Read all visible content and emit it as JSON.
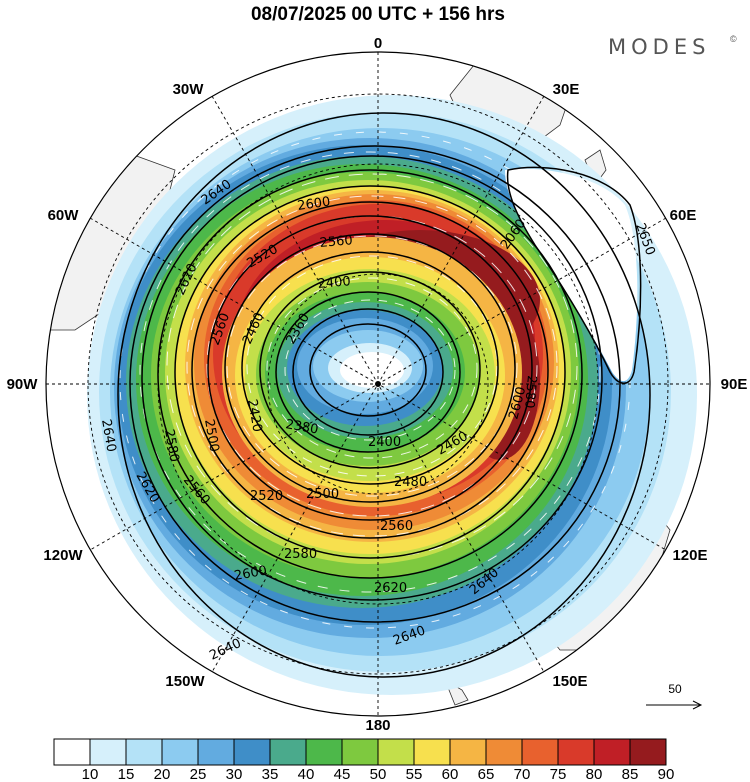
{
  "title": "08/07/2025  00 UTC  + 156 hrs",
  "brand": "MODES",
  "brand_mark": "©",
  "longitude_labels": {
    "lon_0": "0",
    "lon_30e": "30E",
    "lon_60e": "60E",
    "lon_90e": "90E",
    "lon_120e": "120E",
    "lon_150e": "150E",
    "lon_180": "180",
    "lon_150w": "150W",
    "lon_120w": "120W",
    "lon_90w": "90W",
    "lon_60w": "60W",
    "lon_30w": "30W"
  },
  "contour_labels": [
    {
      "text": "2640"
    },
    {
      "text": "2600"
    },
    {
      "text": "2560"
    },
    {
      "text": "2520"
    },
    {
      "text": "2620"
    },
    {
      "text": "2560"
    },
    {
      "text": "2460"
    },
    {
      "text": "2400"
    },
    {
      "text": "2360"
    },
    {
      "text": "2420"
    },
    {
      "text": "2500"
    },
    {
      "text": "2580"
    },
    {
      "text": "2640"
    },
    {
      "text": "2620"
    },
    {
      "text": "2560"
    },
    {
      "text": "2380"
    },
    {
      "text": "2400"
    },
    {
      "text": "2460"
    },
    {
      "text": "2580"
    },
    {
      "text": "2600"
    },
    {
      "text": "2480"
    },
    {
      "text": "2520"
    },
    {
      "text": "2500"
    },
    {
      "text": "2560"
    },
    {
      "text": "2580"
    },
    {
      "text": "2600"
    },
    {
      "text": "2620"
    },
    {
      "text": "2640"
    },
    {
      "text": "2640"
    },
    {
      "text": "2640"
    },
    {
      "text": "2060"
    },
    {
      "text": "2650"
    }
  ],
  "wind_scale": {
    "value": "50"
  },
  "colorbar": {
    "labels": [
      "10",
      "15",
      "20",
      "25",
      "30",
      "35",
      "40",
      "45",
      "50",
      "55",
      "60",
      "65",
      "70",
      "75",
      "80",
      "85",
      "90"
    ],
    "colors": [
      "#ffffff",
      "#d6f0fb",
      "#b4e2f7",
      "#8ccbf0",
      "#62abe0",
      "#3f8ec8",
      "#4aaa8c",
      "#4db84a",
      "#7ec93f",
      "#c3df4a",
      "#f7e04e",
      "#f5b544",
      "#ef8b36",
      "#e8612e",
      "#d93a2a",
      "#c01f26",
      "#951b1e"
    ]
  }
}
